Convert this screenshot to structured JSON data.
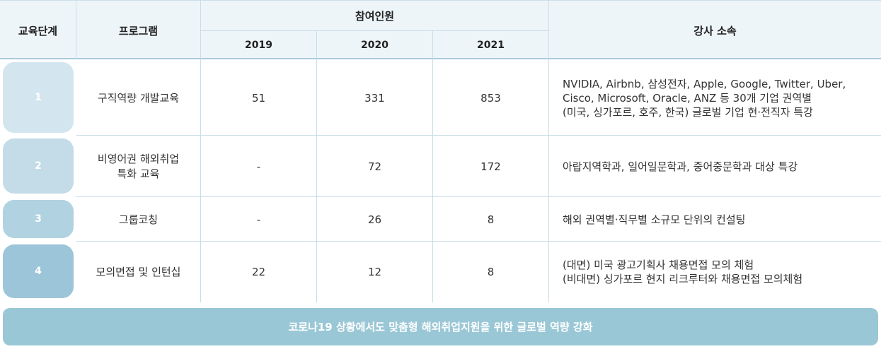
{
  "header": {
    "stage": "교육단계",
    "program": "프로그램",
    "participants": "참여인원",
    "years": [
      "2019",
      "2020",
      "2021"
    ],
    "lecturer": "강사 소속"
  },
  "rows": [
    {
      "stage": "1",
      "program": "구직역량 개발교육",
      "y2019": "51",
      "y2020": "331",
      "y2021": "853",
      "lecturer": "NVIDIA, Airbnb, 삼성전자, Apple, Google, Twitter, Uber,\nCisco, Microsoft, Oracle, ANZ 등 30개 기업 권역별\n(미국, 싱가포르, 호주, 한국) 글로벌 기업 현·전직자 특강",
      "stage_color": "#d3e5ee"
    },
    {
      "stage": "2",
      "program": "비영어권 해외취업\n특화 교육",
      "y2019": "-",
      "y2020": "72",
      "y2021": "172",
      "lecturer": "아랍지역학과, 일어일문학과, 중어중문학과 대상 특강",
      "stage_color": "#c3dce8"
    },
    {
      "stage": "3",
      "program": "그룹코칭",
      "y2019": "-",
      "y2020": "26",
      "y2021": "8",
      "lecturer": "해외 권역별·직무별 소규모 단위의 컨설팅",
      "stage_color": "#b1d2e1"
    },
    {
      "stage": "4",
      "program": "모의면접 및 인턴십",
      "y2019": "22",
      "y2020": "12",
      "y2021": "8",
      "lecturer": "(대면) 미국 광고기획사 채용면접 모의 체험\n(비대면) 싱가포르 현지 리크루터와 채용면접 모의체험",
      "stage_color": "#9dc5d9"
    }
  ],
  "banner": "코로나19 상황에서도 맞춤형 해외취업지원을 위한 글로벌 역량 강화"
}
